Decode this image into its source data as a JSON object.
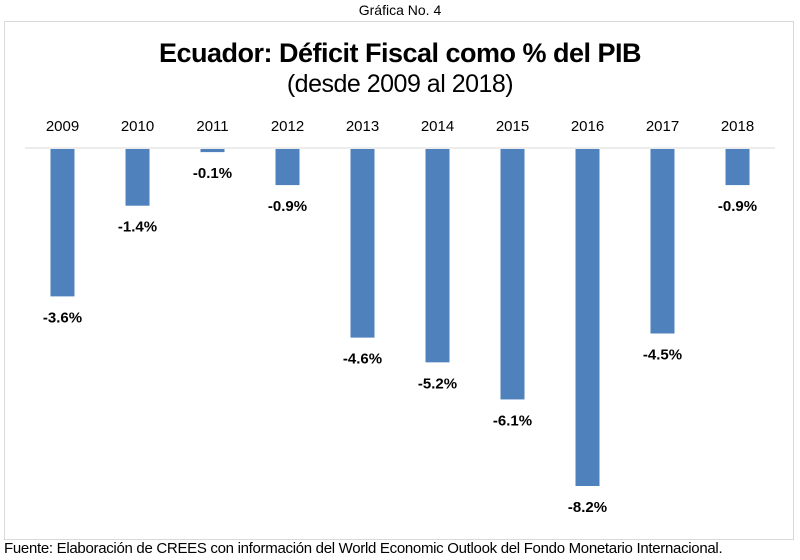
{
  "caption": "Gráfica No. 4",
  "footer": "Fuente: Elaboración de CREES con información del World Economic Outlook del Fondo Monetario Internacional.",
  "colors": {
    "bar": "#4f81bd",
    "axis": "#d9d9d9",
    "text": "#000000"
  },
  "chart_data": {
    "type": "bar",
    "title": "Ecuador: Déficit Fiscal como % del PIB",
    "subtitle": "(desde 2009 al 2018)",
    "xlabel": "",
    "ylabel": "",
    "categories": [
      "2009",
      "2010",
      "2011",
      "2012",
      "2013",
      "2014",
      "2015",
      "2016",
      "2017",
      "2018"
    ],
    "values": [
      -3.6,
      -1.4,
      -0.1,
      -0.9,
      -4.6,
      -5.2,
      -6.1,
      -8.2,
      -4.5,
      -0.9
    ],
    "labels": [
      "-3.6%",
      "-1.4%",
      "-0.1%",
      "-0.9%",
      "-4.6%",
      "-5.2%",
      "-6.1%",
      "-8.2%",
      "-4.5%",
      "-0.9%"
    ],
    "ylim": [
      -8.2,
      0
    ],
    "grid": false,
    "legend": "none",
    "x_axis_position": "top"
  }
}
